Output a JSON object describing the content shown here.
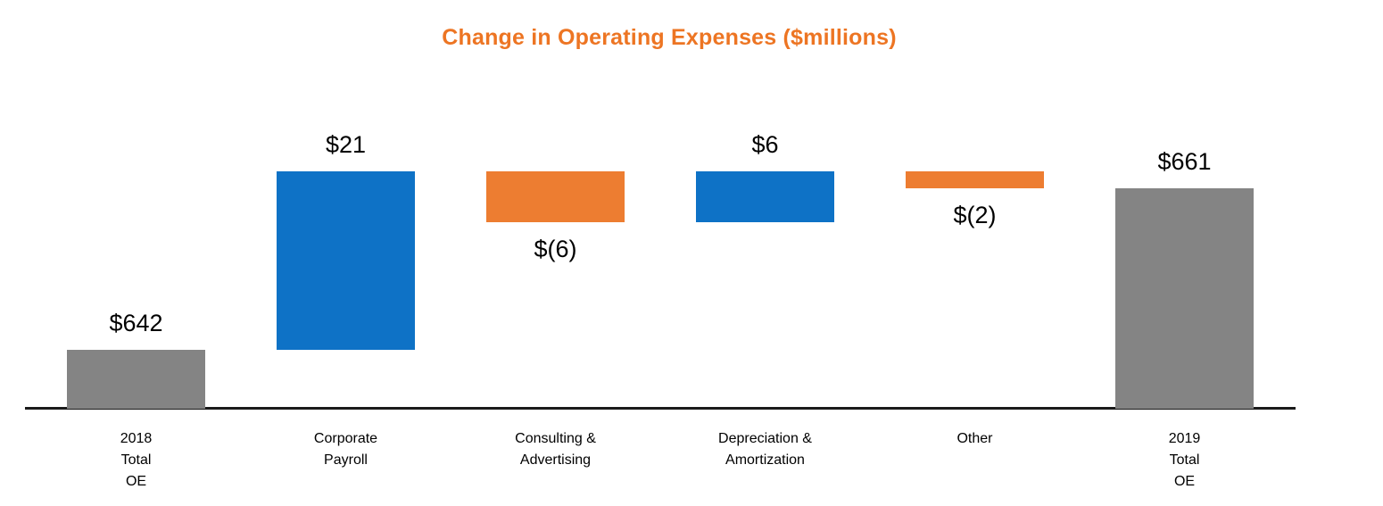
{
  "page": {
    "background": "#FFFFFF"
  },
  "chart_data": {
    "type": "bar",
    "subtype": "waterfall",
    "title": "Change in Operating Expenses ($millions)",
    "xlabel": "",
    "ylabel": "",
    "ylim": [
      635,
      665
    ],
    "grid": false,
    "legend": false,
    "categories": [
      "2018 Total OE",
      "Corporate Payroll",
      "Consulting & Advertising",
      "Depreciation & Amortization",
      "Other",
      "2019 Total OE"
    ],
    "values": [
      642,
      21,
      -6,
      6,
      -2,
      661
    ],
    "bars": [
      {
        "category": "2018 Total OE",
        "category_lines": [
          "2018",
          "Total",
          "OE"
        ],
        "value": 642,
        "label": "$642",
        "kind": "total",
        "label_position": "above"
      },
      {
        "category": "Corporate Payroll",
        "category_lines": [
          "Corporate",
          "Payroll"
        ],
        "value": 21,
        "label": "$21",
        "kind": "increase",
        "label_position": "above"
      },
      {
        "category": "Consulting & Advertising",
        "category_lines": [
          "Consulting &",
          "Advertising"
        ],
        "value": -6,
        "label": "$(6)",
        "kind": "decrease",
        "label_position": "below"
      },
      {
        "category": "Depreciation & Amortization",
        "category_lines": [
          "Depreciation &",
          "Amortization"
        ],
        "value": 6,
        "label": "$6",
        "kind": "increase",
        "label_position": "above"
      },
      {
        "category": "Other",
        "category_lines": [
          "Other"
        ],
        "value": -2,
        "label": "$(2)",
        "kind": "decrease",
        "label_position": "below"
      },
      {
        "category": "2019 Total OE",
        "category_lines": [
          "2019",
          "Total",
          "OE"
        ],
        "value": 661,
        "label": "$661",
        "kind": "total",
        "label_position": "above"
      }
    ],
    "colors": {
      "total": "#848484",
      "increase": "#0E72C6",
      "decrease": "#ED7D31",
      "title": "#ED7523",
      "axis": "#1A1A1A"
    }
  }
}
